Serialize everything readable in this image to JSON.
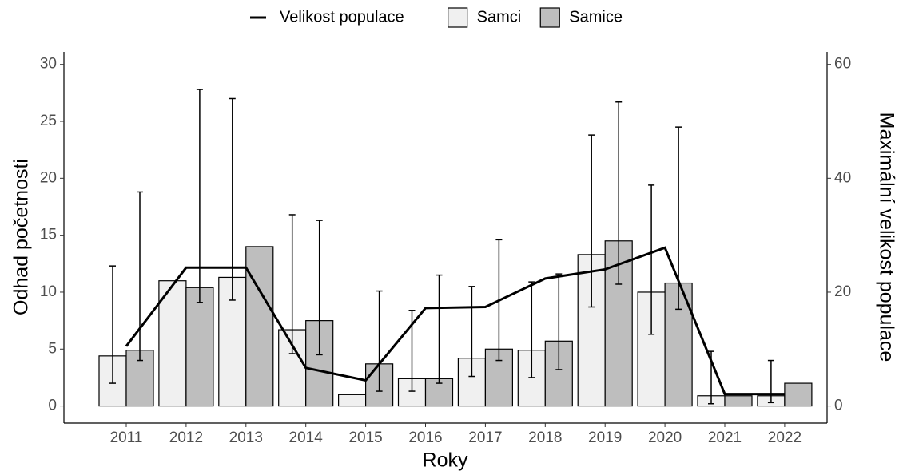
{
  "chart_data": {
    "type": "bar-line",
    "categories": [
      "2011",
      "2012",
      "2013",
      "2014",
      "2015",
      "2016",
      "2017",
      "2018",
      "2019",
      "2020",
      "2021",
      "2022"
    ],
    "x_label": "Roky",
    "y_label": "Odhad početnosti",
    "y2_label": "Maximální velikost populace",
    "ylim": [
      -1.5,
      31.1
    ],
    "yticks": [
      0,
      5,
      10,
      15,
      20,
      25,
      30
    ],
    "y2lim": [
      -3,
      62.2
    ],
    "y2ticks": [
      0,
      20,
      40,
      60
    ],
    "legend": "top",
    "series": [
      {
        "name": "Samci",
        "type": "bar",
        "color": "#f0f0f0",
        "values": [
          4.4,
          11.0,
          11.3,
          6.7,
          1.0,
          2.4,
          4.2,
          4.9,
          13.3,
          10.0,
          0.9,
          0.9
        ],
        "errors": [
          [
            2.0,
            12.3
          ],
          null,
          [
            9.3,
            27.0
          ],
          [
            4.6,
            16.8
          ],
          null,
          [
            1.3,
            8.4
          ],
          [
            2.6,
            10.5
          ],
          [
            2.5,
            10.9
          ],
          [
            8.7,
            23.8
          ],
          [
            6.3,
            19.4
          ],
          [
            0.2,
            4.8
          ],
          [
            0.3,
            4.0
          ]
        ]
      },
      {
        "name": "Samice",
        "type": "bar",
        "color": "#bebebe",
        "values": [
          4.9,
          10.4,
          14.0,
          7.5,
          3.7,
          2.4,
          5.0,
          5.7,
          14.5,
          10.8,
          0.9,
          2.0
        ],
        "errors": [
          [
            4.0,
            18.8
          ],
          [
            9.1,
            27.8
          ],
          null,
          [
            4.5,
            16.3
          ],
          [
            1.3,
            10.1
          ],
          [
            2.0,
            11.5
          ],
          [
            4.0,
            14.6
          ],
          [
            3.2,
            11.6
          ],
          [
            10.7,
            26.7
          ],
          [
            8.5,
            24.5
          ],
          null,
          null
        ]
      },
      {
        "name": "Velikost populace",
        "type": "line",
        "axis": "y2",
        "color": "#000000",
        "values": [
          10.5,
          24.3,
          24.3,
          6.7,
          4.5,
          17.2,
          17.4,
          22.4,
          24.0,
          27.8,
          2.1,
          2.1
        ]
      }
    ]
  }
}
